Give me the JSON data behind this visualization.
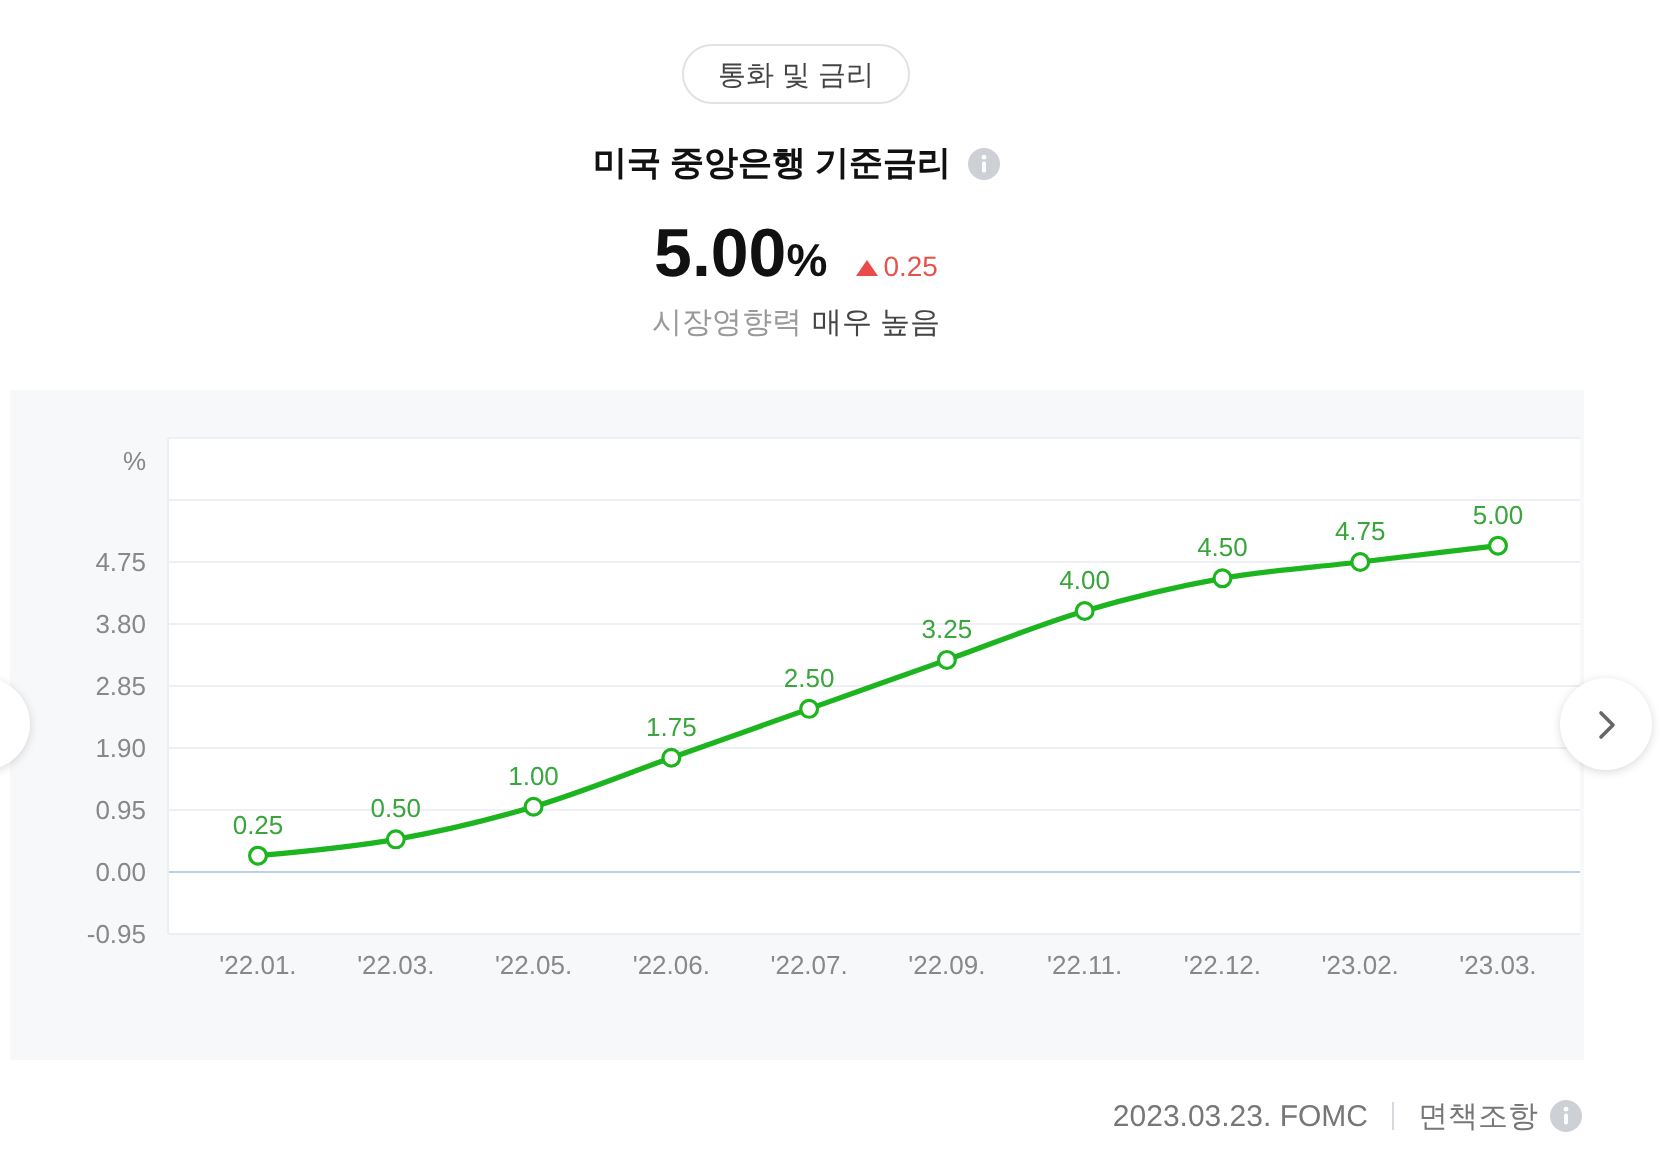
{
  "chart_data": {
    "type": "line",
    "title": "미국 중앙은행 기준금리",
    "ylabel": "%",
    "categories": [
      "'22.01.",
      "'22.03.",
      "'22.05.",
      "'22.06.",
      "'22.07.",
      "'22.09.",
      "'22.11.",
      "'22.12.",
      "'23.02.",
      "'23.03."
    ],
    "values": [
      0.25,
      0.5,
      1.0,
      1.75,
      2.5,
      3.25,
      4.0,
      4.5,
      4.75,
      5.0
    ],
    "value_labels": [
      "0.25",
      "0.50",
      "1.00",
      "1.75",
      "2.50",
      "3.25",
      "4.00",
      "4.50",
      "4.75",
      "5.00"
    ],
    "color": "#1db51f",
    "marker": "circle",
    "line_style": "solid",
    "ylim": [
      -0.95,
      6.65
    ],
    "yticks": [
      -0.95,
      {
        "value": 0,
        "label": "0.00"
      },
      0.95,
      {
        "value": 1.9,
        "label": "1.90"
      },
      2.85,
      {
        "value": 3.8,
        "label": "3.80"
      },
      4.75,
      {
        "value": 5.7,
        "label": null
      }
    ],
    "grid": "y",
    "ref_lines": [
      {
        "axis": "y",
        "value": 0,
        "color": "#b9d0ea"
      }
    ],
    "annotations": [
      "통화 및 금리",
      "5.00%",
      "0.25",
      "시장영향력",
      "매우 높음",
      "2023.03.23. FOMC",
      "면책조항"
    ]
  }
}
